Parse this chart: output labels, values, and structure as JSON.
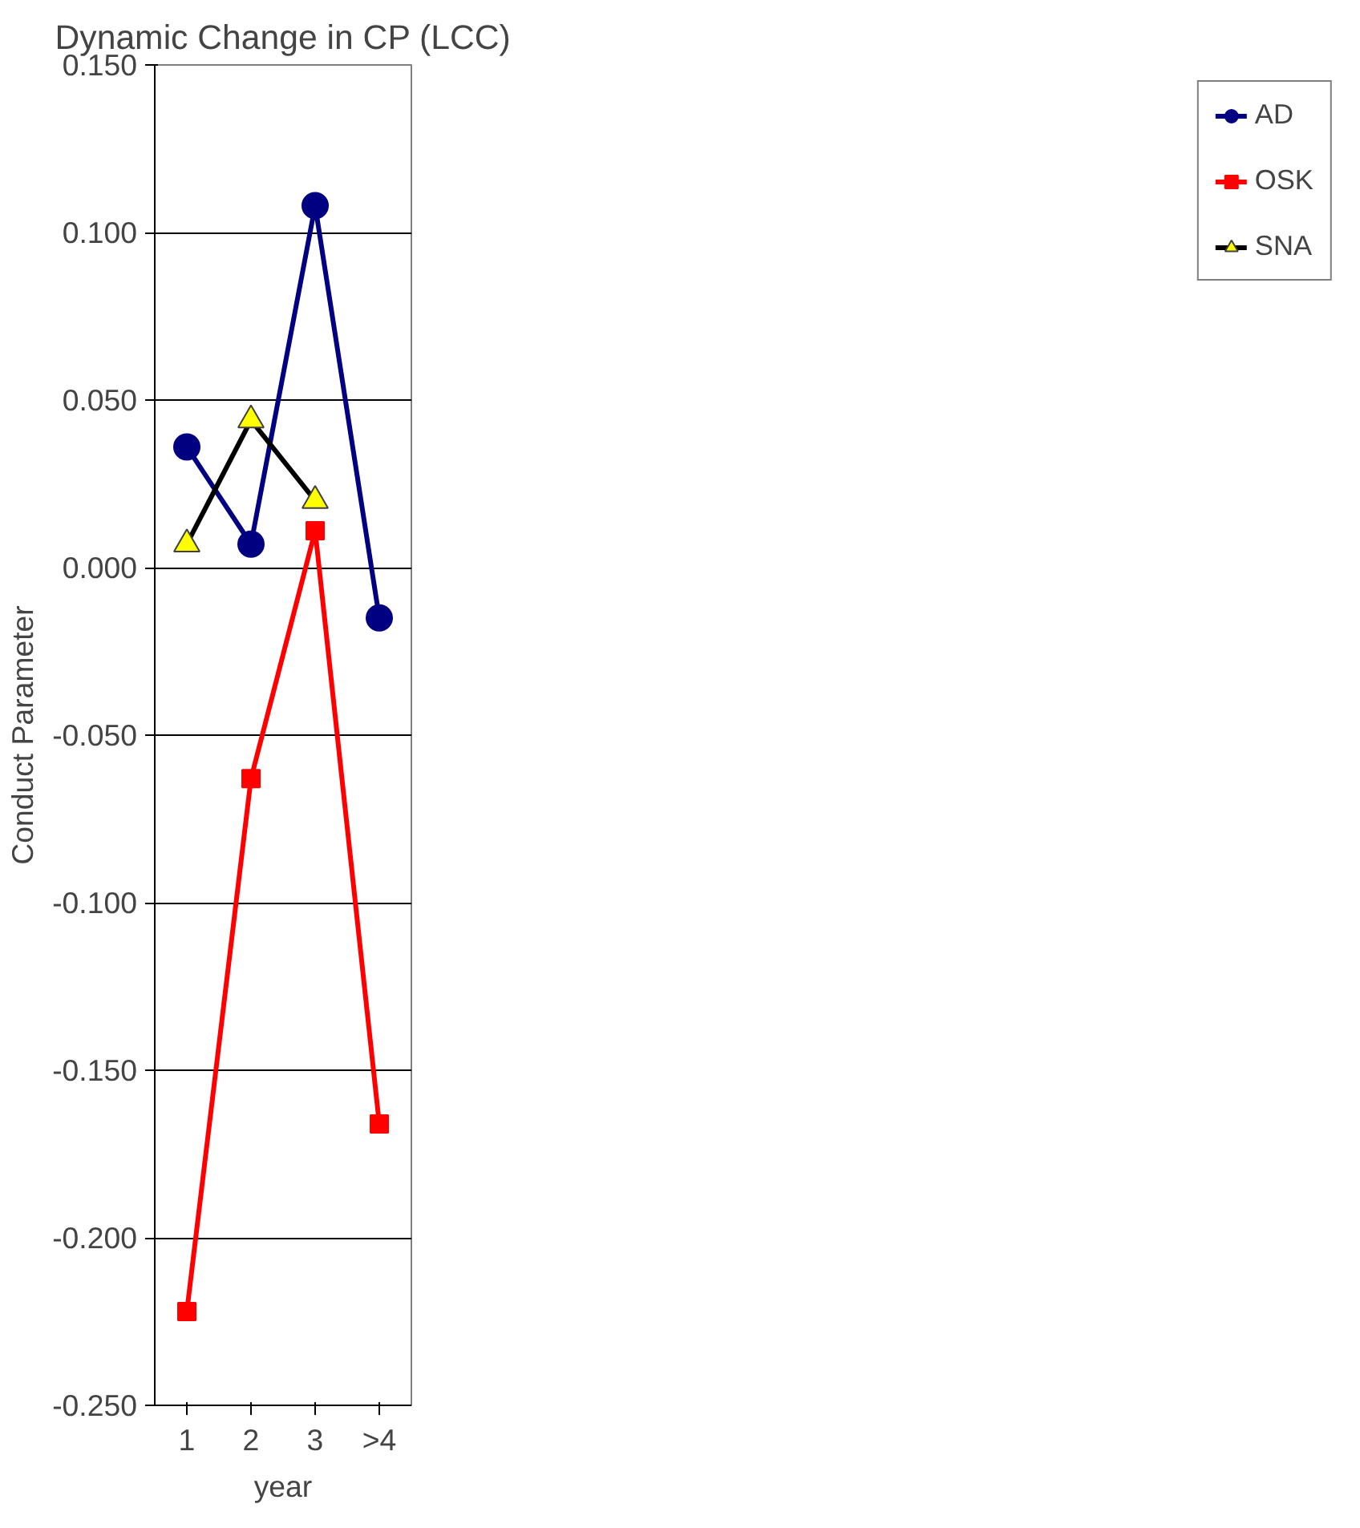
{
  "chart_data": {
    "type": "line",
    "title": "Dynamic Change in CP (LCC)",
    "xlabel": "year",
    "ylabel": "Conduct Parameter",
    "categories": [
      "1",
      "2",
      "3",
      ">4"
    ],
    "series": [
      {
        "name": "AD",
        "color": "#000080",
        "marker": "circle",
        "values": [
          0.036,
          0.007,
          0.108,
          -0.015
        ]
      },
      {
        "name": "OSK",
        "color": "#ff0000",
        "marker": "square",
        "values": [
          -0.222,
          -0.063,
          0.011,
          -0.166
        ]
      },
      {
        "name": "SNA",
        "color": "#000000",
        "marker": "triangle",
        "values": [
          0.007,
          0.044,
          0.02,
          null
        ]
      }
    ],
    "ylim": [
      -0.25,
      0.15
    ],
    "yticks": [
      {
        "value": -0.25,
        "label": "-0.250"
      },
      {
        "value": -0.2,
        "label": "-0.200"
      },
      {
        "value": -0.15,
        "label": "-0.150"
      },
      {
        "value": -0.1,
        "label": "-0.100"
      },
      {
        "value": -0.05,
        "label": "-0.050"
      },
      {
        "value": 0,
        "label": "0.000"
      },
      {
        "value": 0.05,
        "label": "0.050"
      },
      {
        "value": 0.1,
        "label": "0.100"
      },
      {
        "value": 0.15,
        "label": "0.150"
      }
    ],
    "grid": "y",
    "legend": "right"
  }
}
